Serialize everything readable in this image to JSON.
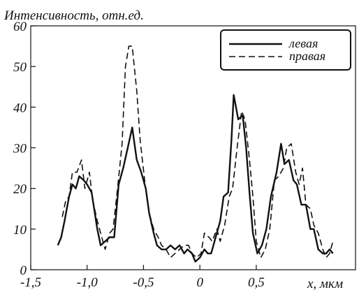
{
  "chart_data": {
    "type": "line",
    "ylabel": "Интенсивность, отн.ед.",
    "xlabel": "x,  мкм",
    "xlim": [
      -1.5,
      1.38
    ],
    "ylim": [
      0,
      60
    ],
    "x_ticks": [
      {
        "value": -1.5,
        "label": "-1,5"
      },
      {
        "value": -1.0,
        "label": "-1,0"
      },
      {
        "value": -0.5,
        "label": "-0,5"
      },
      {
        "value": 0,
        "label": "0"
      },
      {
        "value": 0.5,
        "label": "0,5"
      }
    ],
    "y_ticks": [
      {
        "value": 0,
        "label": "0"
      },
      {
        "value": 10,
        "label": "10"
      },
      {
        "value": 20,
        "label": "20"
      },
      {
        "value": 30,
        "label": "30"
      },
      {
        "value": 40,
        "label": "40"
      },
      {
        "value": 50,
        "label": "50"
      },
      {
        "value": 60,
        "label": "60"
      }
    ],
    "grid": false,
    "legend_position": "top-right",
    "series": [
      {
        "name": "левая",
        "style": "solid",
        "color": "#111111",
        "points": [
          [
            -1.26,
            6
          ],
          [
            -1.23,
            8
          ],
          [
            -1.2,
            12
          ],
          [
            -1.16,
            18
          ],
          [
            -1.13,
            21
          ],
          [
            -1.1,
            20
          ],
          [
            -1.07,
            23
          ],
          [
            -1.03,
            22
          ],
          [
            -1.0,
            21
          ],
          [
            -0.96,
            19
          ],
          [
            -0.91,
            10
          ],
          [
            -0.88,
            6
          ],
          [
            -0.84,
            7
          ],
          [
            -0.8,
            8
          ],
          [
            -0.76,
            8
          ],
          [
            -0.72,
            21
          ],
          [
            -0.68,
            25
          ],
          [
            -0.64,
            30
          ],
          [
            -0.6,
            35
          ],
          [
            -0.56,
            27
          ],
          [
            -0.52,
            24
          ],
          [
            -0.48,
            20
          ],
          [
            -0.45,
            14
          ],
          [
            -0.41,
            9
          ],
          [
            -0.38,
            6
          ],
          [
            -0.34,
            5
          ],
          [
            -0.3,
            5
          ],
          [
            -0.26,
            6
          ],
          [
            -0.22,
            5
          ],
          [
            -0.18,
            6
          ],
          [
            -0.14,
            4
          ],
          [
            -0.11,
            5
          ],
          [
            -0.07,
            4
          ],
          [
            -0.04,
            2
          ],
          [
            0.0,
            3
          ],
          [
            0.04,
            5
          ],
          [
            0.07,
            4
          ],
          [
            0.1,
            4
          ],
          [
            0.14,
            8
          ],
          [
            0.18,
            12
          ],
          [
            0.21,
            18
          ],
          [
            0.25,
            19
          ],
          [
            0.28,
            32
          ],
          [
            0.3,
            43
          ],
          [
            0.34,
            37
          ],
          [
            0.38,
            38
          ],
          [
            0.41,
            30
          ],
          [
            0.44,
            19
          ],
          [
            0.47,
            9
          ],
          [
            0.51,
            4
          ],
          [
            0.55,
            6
          ],
          [
            0.59,
            10
          ],
          [
            0.63,
            18
          ],
          [
            0.68,
            24
          ],
          [
            0.72,
            31
          ],
          [
            0.75,
            26
          ],
          [
            0.79,
            27
          ],
          [
            0.83,
            22
          ],
          [
            0.86,
            21
          ],
          [
            0.9,
            16
          ],
          [
            0.94,
            16
          ],
          [
            0.98,
            10
          ],
          [
            1.01,
            10
          ],
          [
            1.05,
            5
          ],
          [
            1.09,
            4
          ],
          [
            1.12,
            4
          ],
          [
            1.15,
            5
          ],
          [
            1.18,
            4
          ]
        ]
      },
      {
        "name": "правая",
        "style": "dashed",
        "color": "#111111",
        "points": [
          [
            -1.22,
            13
          ],
          [
            -1.19,
            17
          ],
          [
            -1.16,
            18
          ],
          [
            -1.13,
            24
          ],
          [
            -1.09,
            24
          ],
          [
            -1.05,
            27
          ],
          [
            -1.02,
            20
          ],
          [
            -0.98,
            24
          ],
          [
            -0.95,
            17
          ],
          [
            -0.91,
            12
          ],
          [
            -0.87,
            8
          ],
          [
            -0.84,
            5
          ],
          [
            -0.8,
            9
          ],
          [
            -0.77,
            10
          ],
          [
            -0.73,
            20
          ],
          [
            -0.69,
            31
          ],
          [
            -0.66,
            50
          ],
          [
            -0.63,
            55
          ],
          [
            -0.6,
            55
          ],
          [
            -0.56,
            44
          ],
          [
            -0.53,
            32
          ],
          [
            -0.49,
            22
          ],
          [
            -0.45,
            14
          ],
          [
            -0.41,
            10
          ],
          [
            -0.37,
            8
          ],
          [
            -0.34,
            6
          ],
          [
            -0.3,
            5
          ],
          [
            -0.26,
            3
          ],
          [
            -0.22,
            4
          ],
          [
            -0.18,
            5
          ],
          [
            -0.14,
            6
          ],
          [
            -0.1,
            6
          ],
          [
            -0.07,
            4
          ],
          [
            -0.03,
            3
          ],
          [
            0.01,
            4
          ],
          [
            0.04,
            9
          ],
          [
            0.08,
            8
          ],
          [
            0.11,
            7
          ],
          [
            0.15,
            10
          ],
          [
            0.18,
            7
          ],
          [
            0.22,
            11
          ],
          [
            0.26,
            18
          ],
          [
            0.29,
            20
          ],
          [
            0.33,
            30
          ],
          [
            0.37,
            39
          ],
          [
            0.4,
            37
          ],
          [
            0.44,
            27
          ],
          [
            0.47,
            18
          ],
          [
            0.5,
            7
          ],
          [
            0.54,
            3
          ],
          [
            0.58,
            5
          ],
          [
            0.62,
            10
          ],
          [
            0.66,
            22
          ],
          [
            0.7,
            23
          ],
          [
            0.74,
            25
          ],
          [
            0.77,
            30
          ],
          [
            0.81,
            31
          ],
          [
            0.85,
            24
          ],
          [
            0.88,
            21
          ],
          [
            0.91,
            25
          ],
          [
            0.94,
            16
          ],
          [
            0.98,
            15
          ],
          [
            1.01,
            11
          ],
          [
            1.05,
            9
          ],
          [
            1.09,
            5
          ],
          [
            1.12,
            3
          ],
          [
            1.15,
            4
          ],
          [
            1.18,
            7
          ]
        ]
      }
    ]
  }
}
